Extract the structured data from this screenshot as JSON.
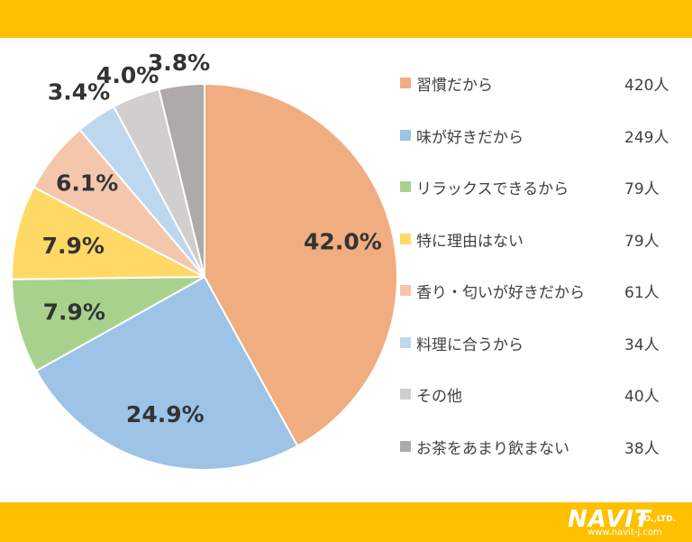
{
  "chart_data": {
    "type": "pie",
    "categories": [
      "習慣だから",
      "味が好きだから",
      "リラックスできるから",
      "特に理由はない",
      "香り・匂いが好きだから",
      "料理に合うから",
      "その他",
      "お茶をあまり飲まない"
    ],
    "values": [
      420,
      249,
      79,
      79,
      61,
      34,
      40,
      38
    ],
    "percent_labels": [
      "42.0%",
      "24.9%",
      "7.9%",
      "7.9%",
      "6.1%",
      "3.4%",
      "4.0%",
      "3.8%"
    ],
    "count_labels": [
      "420人",
      "249人",
      "79人",
      "79人",
      "61人",
      "34人",
      "40人",
      "38人"
    ],
    "colors": [
      "#f0ad80",
      "#9dc3e6",
      "#a9d18e",
      "#ffd966",
      "#f4c7ad",
      "#bdd7ee",
      "#d0cece",
      "#aeaaaa"
    ],
    "start": "12 o'clock, clockwise",
    "legend_position": "right"
  },
  "header_band_color": "#ffc000",
  "footer": {
    "logo_text": "NAVIT",
    "logo_suffix": "CO.,LTD.",
    "url": "www.navit-j.com"
  }
}
